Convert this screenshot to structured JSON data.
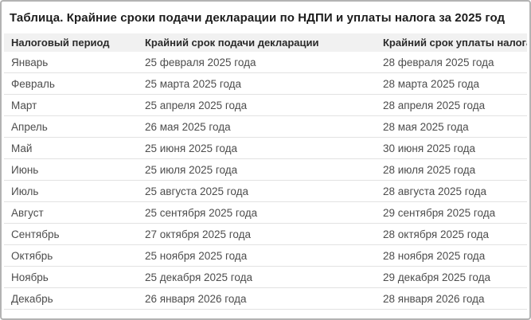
{
  "page": {
    "title": "Таблица. Крайние сроки подачи декларации по НДПИ и уплаты налога за 2025 год"
  },
  "table": {
    "columns": [
      "Налоговый период",
      "Крайний срок подачи декларации",
      "Крайний срок уплаты налога"
    ],
    "rows": [
      {
        "period": "Январь",
        "declaration_deadline": "25 февраля 2025 года",
        "payment_deadline": "28 февраля 2025 года"
      },
      {
        "period": "Февраль",
        "declaration_deadline": "25 марта 2025 года",
        "payment_deadline": "28 марта 2025 года"
      },
      {
        "period": "Март",
        "declaration_deadline": "25 апреля 2025 года",
        "payment_deadline": "28 апреля 2025 года"
      },
      {
        "period": "Апрель",
        "declaration_deadline": "26 мая 2025 года",
        "payment_deadline": "28 мая 2025 года"
      },
      {
        "period": "Май",
        "declaration_deadline": "25 июня 2025 года",
        "payment_deadline": "30 июня 2025 года"
      },
      {
        "period": "Июнь",
        "declaration_deadline": "25 июля 2025 года",
        "payment_deadline": "28 июля 2025 года"
      },
      {
        "period": "Июль",
        "declaration_deadline": "25 августа 2025 года",
        "payment_deadline": "28 августа 2025 года"
      },
      {
        "period": "Август",
        "declaration_deadline": "25 сентября 2025 года",
        "payment_deadline": "29 сентября 2025 года"
      },
      {
        "period": "Сентябрь",
        "declaration_deadline": "27 октября 2025 года",
        "payment_deadline": "28 октября 2025 года"
      },
      {
        "period": "Октябрь",
        "declaration_deadline": "25 ноября 2025 года",
        "payment_deadline": "28 ноября 2025 года"
      },
      {
        "period": "Ноябрь",
        "declaration_deadline": "25 декабря 2025 года",
        "payment_deadline": "29 декабря 2025 года"
      },
      {
        "period": "Декабрь",
        "declaration_deadline": "26 января 2026 года",
        "payment_deadline": "28 января 2026 года"
      }
    ]
  },
  "colors": {
    "outer_border": "#b3b3b3",
    "header_background": "#f1f1f1",
    "row_separator": "#e2e2e2",
    "title_text": "#1d1d1d",
    "header_text": "#2b2b2b",
    "body_text": "#4d4d4d",
    "page_background": "#ffffff"
  }
}
